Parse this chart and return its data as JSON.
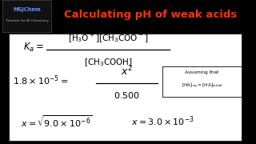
{
  "bg_color": "#000000",
  "white_box_bg": "#ffffff",
  "title_text": "Calculating pH of weak acids",
  "title_color": "#ff3300",
  "brand_line1": "MSJChem",
  "brand_line2": "Tutorials for IB Chemistry",
  "brand_color": "#6699ff",
  "brand_color2": "#aaaaaa"
}
